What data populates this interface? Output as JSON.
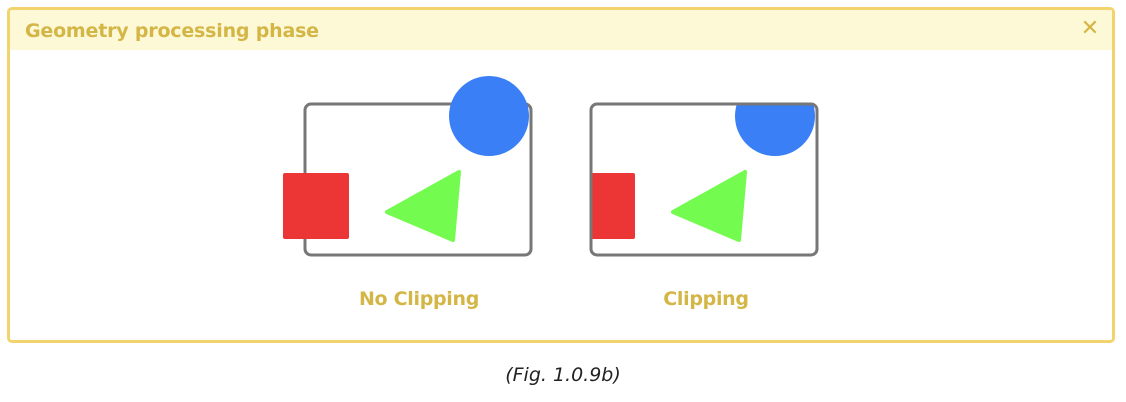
{
  "panel": {
    "title": "Geometry processing phase",
    "close_glyph": "✕",
    "close_icon": "close-icon"
  },
  "diagrams": {
    "no_clipping": {
      "label": "No Clipping",
      "clipped": false
    },
    "clipping": {
      "label": "Clipping",
      "clipped": true
    }
  },
  "colors": {
    "frame": "#777777",
    "square": "#ec3535",
    "triangle": "#74fb4f",
    "circle": "#3a7ff5",
    "label": "#d4b646",
    "panel_border": "#f2d46e",
    "header_bg": "#fdf8d6"
  },
  "figure_caption": "(Fig. 1.0.9b)"
}
